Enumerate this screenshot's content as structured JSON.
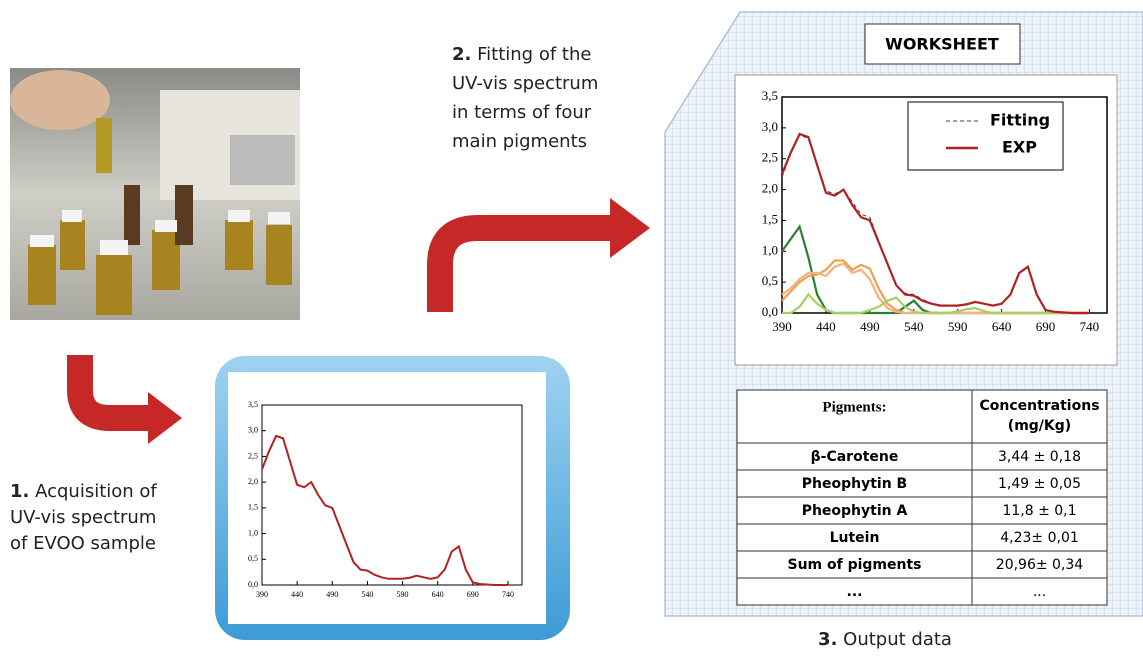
{
  "steps": [
    {
      "number": "1.",
      "lines": [
        "Acquisition of",
        "UV-vis spectrum",
        "of EVOO sample"
      ]
    },
    {
      "number": "2.",
      "lines": [
        "Fitting of the",
        "UV-vis spectrum",
        "in terms of four",
        "main pigments"
      ]
    },
    {
      "number": "3.",
      "lines": [
        "Output data"
      ]
    }
  ],
  "worksheet": {
    "title": "WORKSHEET"
  },
  "chart_data": [
    {
      "type": "line",
      "x": [
        390,
        400,
        410,
        420,
        430,
        440,
        450,
        460,
        470,
        480,
        490,
        500,
        510,
        520,
        530,
        540,
        550,
        560,
        570,
        580,
        590,
        600,
        610,
        620,
        630,
        640,
        650,
        660,
        670,
        680,
        690,
        700,
        710,
        720,
        730,
        740
      ],
      "series": [
        {
          "color": "#b22222",
          "values": [
            2.25,
            2.6,
            2.9,
            2.85,
            2.4,
            1.95,
            1.9,
            2.0,
            1.75,
            1.55,
            1.5,
            1.15,
            0.8,
            0.45,
            0.3,
            0.28,
            0.2,
            0.15,
            0.12,
            0.12,
            0.12,
            0.14,
            0.18,
            0.15,
            0.12,
            0.15,
            0.3,
            0.65,
            0.75,
            0.3,
            0.05,
            0.02,
            0.01,
            0,
            0,
            0
          ]
        }
      ],
      "xlim": [
        390,
        760
      ],
      "xticks": [
        390,
        440,
        490,
        540,
        590,
        640,
        690,
        740
      ],
      "ylim": [
        0,
        3.5
      ],
      "yticks": [
        {
          "value": 0,
          "label": "0,0"
        },
        {
          "value": 0.5,
          "label": "0,5"
        },
        {
          "value": 1,
          "label": "1,0"
        },
        {
          "value": 1.5,
          "label": "1,5"
        },
        {
          "value": 2,
          "label": "2,0"
        },
        {
          "value": 2.5,
          "label": "2,5"
        },
        {
          "value": 3,
          "label": "3,0"
        },
        {
          "value": 3.5,
          "label": "3,5"
        }
      ]
    },
    {
      "type": "line",
      "x": [
        390,
        400,
        410,
        420,
        430,
        440,
        450,
        460,
        470,
        480,
        490,
        500,
        510,
        520,
        530,
        540,
        550,
        560,
        570,
        580,
        590,
        600,
        610,
        620,
        630,
        640,
        650,
        660,
        670,
        680,
        690,
        700,
        710,
        720,
        730,
        740
      ],
      "series": [
        {
          "color": "#2e7d32",
          "values": [
            1.0,
            1.2,
            1.4,
            0.9,
            0.3,
            0.05,
            0,
            0,
            0,
            0,
            0,
            0,
            0,
            0,
            0.1,
            0.2,
            0.05,
            0,
            0,
            0,
            0,
            0,
            0,
            0,
            0,
            0,
            0,
            0,
            0,
            0,
            0,
            0,
            0,
            0,
            0,
            0
          ]
        },
        {
          "color": "#f0a050",
          "values": [
            0.2,
            0.35,
            0.5,
            0.6,
            0.62,
            0.7,
            0.85,
            0.85,
            0.7,
            0.78,
            0.72,
            0.4,
            0.15,
            0.05,
            0,
            0,
            0,
            0,
            0,
            0,
            0,
            0,
            0,
            0,
            0,
            0,
            0,
            0,
            0,
            0,
            0,
            0,
            0,
            0,
            0,
            0
          ]
        },
        {
          "color": "#f4b183",
          "values": [
            0.3,
            0.4,
            0.55,
            0.65,
            0.65,
            0.6,
            0.75,
            0.8,
            0.65,
            0.7,
            0.55,
            0.25,
            0.08,
            0.02,
            0,
            0,
            0,
            0,
            0,
            0,
            0,
            0,
            0,
            0,
            0,
            0,
            0,
            0,
            0,
            0,
            0,
            0,
            0,
            0,
            0,
            0
          ]
        },
        {
          "color": "#a8d060",
          "values": [
            0,
            0,
            0.1,
            0.3,
            0.15,
            0.05,
            0,
            0,
            0,
            0,
            0.05,
            0.1,
            0.2,
            0.25,
            0.1,
            0.02,
            0,
            0,
            0,
            0,
            0.03,
            0.06,
            0.08,
            0.03,
            0,
            0,
            0,
            0,
            0,
            0,
            0,
            0,
            0,
            0,
            0,
            0
          ]
        },
        {
          "name": "Fitting",
          "color": "#444444",
          "dashed": true,
          "values": [
            2.2,
            2.58,
            2.88,
            2.83,
            2.42,
            1.98,
            1.93,
            2.0,
            1.8,
            1.6,
            1.55,
            1.18,
            0.8,
            0.45,
            0.32,
            0.3,
            0.22,
            0.16,
            0.13,
            0.13,
            0.13,
            0.15,
            0.18,
            0.15,
            0.12,
            0.15,
            0.3,
            0.63,
            0.74,
            0.3,
            0.05,
            0.02,
            0.01,
            0,
            0,
            0
          ]
        },
        {
          "name": "EXP",
          "color": "#b22222",
          "values": [
            2.25,
            2.6,
            2.9,
            2.85,
            2.4,
            1.95,
            1.9,
            2.0,
            1.75,
            1.55,
            1.5,
            1.15,
            0.8,
            0.45,
            0.3,
            0.28,
            0.2,
            0.15,
            0.12,
            0.12,
            0.12,
            0.14,
            0.18,
            0.15,
            0.12,
            0.15,
            0.3,
            0.65,
            0.75,
            0.3,
            0.05,
            0.02,
            0.01,
            0,
            0,
            0
          ]
        }
      ],
      "xlim": [
        390,
        760
      ],
      "xticks": [
        390,
        440,
        490,
        540,
        590,
        640,
        690,
        740
      ],
      "ylim": [
        0,
        3.5
      ],
      "yticks": [
        {
          "value": 0,
          "label": "0,0"
        },
        {
          "value": 0.5,
          "label": "0,5"
        },
        {
          "value": 1,
          "label": "1,0"
        },
        {
          "value": 1.5,
          "label": "1,5"
        },
        {
          "value": 2,
          "label": "2,0"
        },
        {
          "value": 2.5,
          "label": "2,5"
        },
        {
          "value": 3,
          "label": "3,0"
        },
        {
          "value": 3.5,
          "label": "3,5"
        }
      ],
      "legend": "upper right"
    }
  ],
  "table": {
    "header": [
      "Pigments:",
      "Concentrations (mg/Kg)"
    ],
    "rows": [
      [
        "β-Carotene",
        "3,44 ± 0,18"
      ],
      [
        "Pheophytin B",
        "1,49 ± 0,05"
      ],
      [
        "Pheophytin A",
        "11,8 ± 0,1"
      ],
      [
        "Lutein",
        "4,23± 0,01"
      ],
      [
        "Sum of pigments",
        "20,96± 0,34"
      ],
      [
        "...",
        "..."
      ]
    ]
  }
}
